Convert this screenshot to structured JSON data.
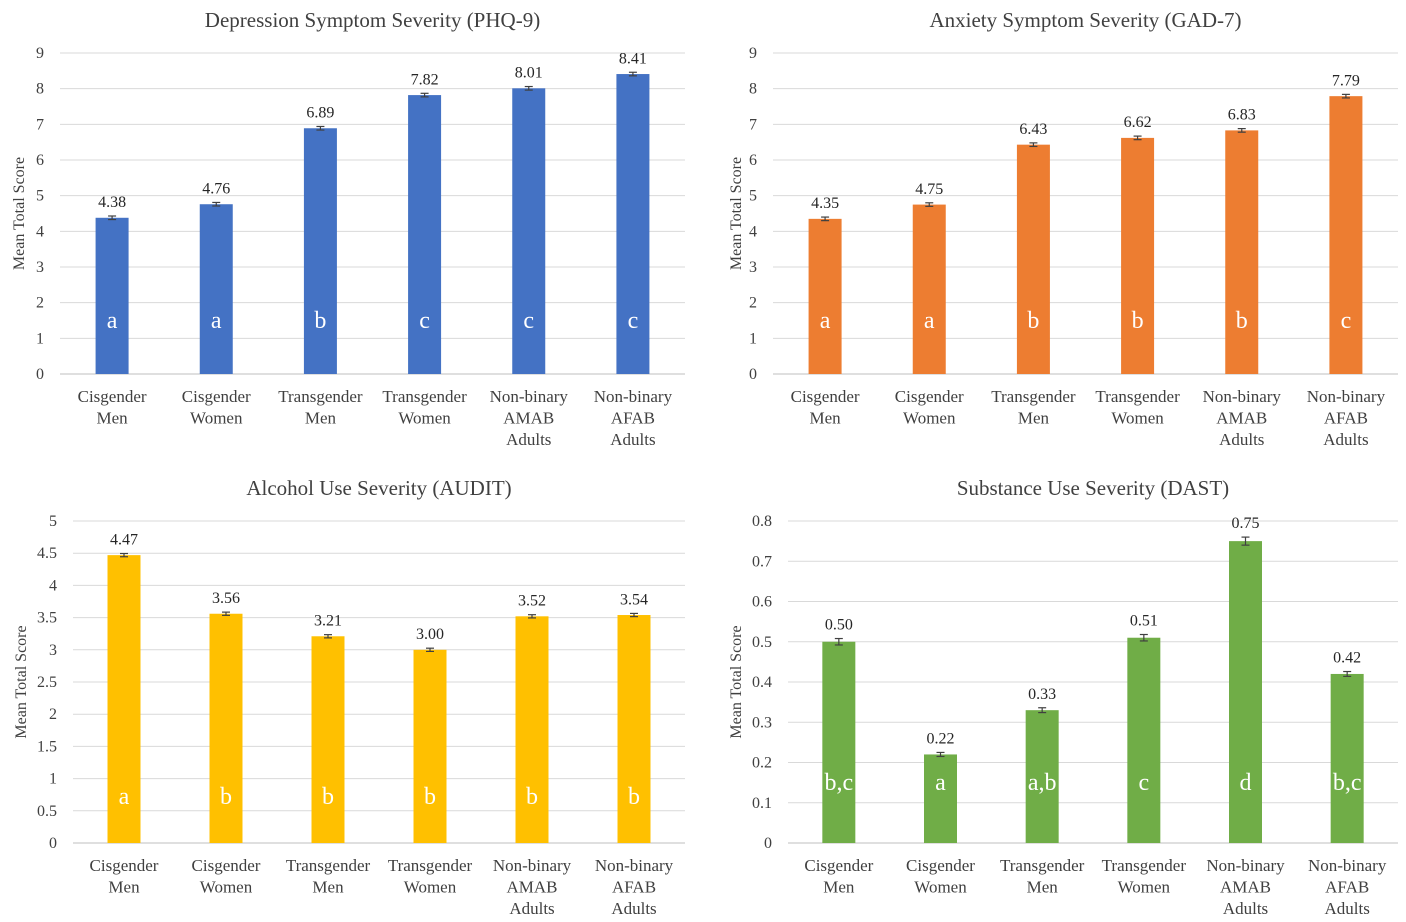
{
  "charts": [
    {
      "type": "bar",
      "title": "Depression Symptom Severity (PHQ-9)",
      "ylabel": "Mean Total Score",
      "ylim": [
        0,
        9
      ],
      "yticks": [
        "0",
        "1",
        "2",
        "3",
        "4",
        "5",
        "6",
        "7",
        "8",
        "9"
      ],
      "color": "#4472c4",
      "categories": [
        [
          "Cisgender",
          "Men"
        ],
        [
          "Cisgender",
          "Women"
        ],
        [
          "Transgender",
          "Men"
        ],
        [
          "Transgender",
          "Women"
        ],
        [
          "Non-binary",
          "AMAB",
          "Adults"
        ],
        [
          "Non-binary",
          "AFAB",
          "Adults"
        ]
      ],
      "values": [
        4.38,
        4.76,
        6.89,
        7.82,
        8.01,
        8.41
      ],
      "value_labels": [
        "4.38",
        "4.76",
        "6.89",
        "7.82",
        "8.01",
        "8.41"
      ],
      "errors": [
        0.05,
        0.05,
        0.05,
        0.05,
        0.05,
        0.05
      ],
      "group_labels": [
        "a",
        "a",
        "b",
        "c",
        "c",
        "c"
      ]
    },
    {
      "type": "bar",
      "title": "Anxiety Symptom Severity (GAD-7)",
      "ylabel": "Mean Total Score",
      "ylim": [
        0,
        9
      ],
      "yticks": [
        "0",
        "1",
        "2",
        "3",
        "4",
        "5",
        "6",
        "7",
        "8",
        "9"
      ],
      "color": "#ed7d31",
      "categories": [
        [
          "Cisgender",
          "Men"
        ],
        [
          "Cisgender",
          "Women"
        ],
        [
          "Transgender",
          "Men"
        ],
        [
          "Transgender",
          "Women"
        ],
        [
          "Non-binary",
          "AMAB",
          "Adults"
        ],
        [
          "Non-binary",
          "AFAB",
          "Adults"
        ]
      ],
      "values": [
        4.35,
        4.75,
        6.43,
        6.62,
        6.83,
        7.79
      ],
      "value_labels": [
        "4.35",
        "4.75",
        "6.43",
        "6.62",
        "6.83",
        "7.79"
      ],
      "errors": [
        0.05,
        0.05,
        0.05,
        0.05,
        0.05,
        0.05
      ],
      "group_labels": [
        "a",
        "a",
        "b",
        "b",
        "b",
        "c"
      ]
    },
    {
      "type": "bar",
      "title": "Alcohol Use Severity (AUDIT)",
      "ylabel": "Mean Total Score",
      "ylim": [
        0,
        5
      ],
      "yticks": [
        "0",
        "0.5",
        "1",
        "1.5",
        "2",
        "2.5",
        "3",
        "3.5",
        "4",
        "4.5",
        "5"
      ],
      "color": "#ffc000",
      "categories": [
        [
          "Cisgender",
          "Men"
        ],
        [
          "Cisgender",
          "Women"
        ],
        [
          "Transgender",
          "Men"
        ],
        [
          "Transgender",
          "Women"
        ],
        [
          "Non-binary",
          "AMAB",
          "Adults"
        ],
        [
          "Non-binary",
          "AFAB",
          "Adults"
        ]
      ],
      "values": [
        4.47,
        3.56,
        3.21,
        3.0,
        3.52,
        3.54
      ],
      "value_labels": [
        "4.47",
        "3.56",
        "3.21",
        "3.00",
        "3.52",
        "3.54"
      ],
      "errors": [
        0.025,
        0.025,
        0.025,
        0.025,
        0.025,
        0.025
      ],
      "group_labels": [
        "a",
        "b",
        "b",
        "b",
        "b",
        "b"
      ]
    },
    {
      "type": "bar",
      "title": "Substance Use Severity (DAST)",
      "ylabel": "Mean Total Score",
      "ylim": [
        0,
        0.8
      ],
      "yticks": [
        "0",
        "0.1",
        "0.2",
        "0.3",
        "0.4",
        "0.5",
        "0.6",
        "0.7",
        "0.8"
      ],
      "color": "#70ad47",
      "categories": [
        [
          "Cisgender",
          "Men"
        ],
        [
          "Cisgender",
          "Women"
        ],
        [
          "Transgender",
          "Men"
        ],
        [
          "Transgender",
          "Women"
        ],
        [
          "Non-binary",
          "AMAB",
          "Adults"
        ],
        [
          "Non-binary",
          "AFAB",
          "Adults"
        ]
      ],
      "values": [
        0.5,
        0.22,
        0.33,
        0.51,
        0.75,
        0.42
      ],
      "value_labels": [
        "0.50",
        "0.22",
        "0.33",
        "0.51",
        "0.75",
        "0.42"
      ],
      "errors": [
        0.008,
        0.005,
        0.006,
        0.008,
        0.01,
        0.006
      ],
      "group_labels": [
        "b,c",
        "a",
        "a,b",
        "c",
        "d",
        "b,c"
      ]
    }
  ]
}
